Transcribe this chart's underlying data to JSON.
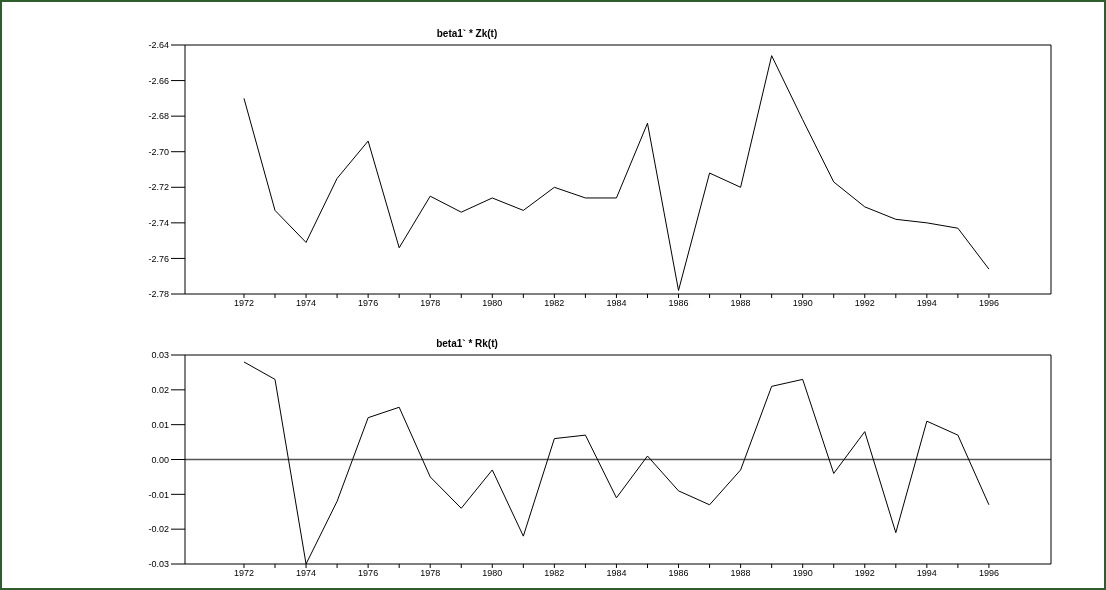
{
  "chart_data": [
    {
      "type": "line",
      "title": "beta1` * Zk(t)",
      "x": [
        1972,
        1973,
        1974,
        1975,
        1976,
        1977,
        1978,
        1979,
        1980,
        1981,
        1982,
        1983,
        1984,
        1985,
        1986,
        1987,
        1988,
        1989,
        1990,
        1991,
        1992,
        1993,
        1994,
        1995,
        1996
      ],
      "values": [
        -2.67,
        -2.733,
        -2.751,
        -2.715,
        -2.694,
        -2.754,
        -2.725,
        -2.734,
        -2.726,
        -2.733,
        -2.72,
        -2.726,
        -2.726,
        -2.684,
        -2.778,
        -2.712,
        -2.72,
        -2.646,
        -2.682,
        -2.717,
        -2.731,
        -2.738,
        -2.74,
        -2.743,
        -2.766
      ],
      "color": "#000000",
      "marker": "none",
      "xlim": [
        1970.1,
        1998
      ],
      "xticks": [
        1972,
        {
          "value": 1973,
          "label": null
        },
        1974,
        {
          "value": 1975,
          "label": null
        },
        1976,
        {
          "value": 1977,
          "label": null
        },
        1978,
        {
          "value": 1979,
          "label": null
        },
        1980,
        {
          "value": 1981,
          "label": null
        },
        1982,
        {
          "value": 1983,
          "label": null
        },
        1984,
        {
          "value": 1985,
          "label": null
        },
        1986,
        {
          "value": 1987,
          "label": null
        },
        1988,
        {
          "value": 1989,
          "label": null
        },
        1990,
        {
          "value": 1991,
          "label": null
        },
        1992,
        {
          "value": 1993,
          "label": null
        },
        1994,
        {
          "value": 1995,
          "label": null
        },
        1996
      ],
      "ylim": [
        -2.78,
        -2.64
      ],
      "yticks": [
        -2.78,
        -2.76,
        -2.74,
        -2.72,
        {
          "value": -2.7,
          "label": "-2.70"
        },
        -2.68,
        -2.66,
        -2.64
      ]
    },
    {
      "type": "line",
      "title": "beta1` * Rk(t)",
      "x": [
        1972,
        1973,
        1974,
        1975,
        1976,
        1977,
        1978,
        1979,
        1980,
        1981,
        1982,
        1983,
        1984,
        1985,
        1986,
        1987,
        1988,
        1989,
        1990,
        1991,
        1992,
        1993,
        1994,
        1995,
        1996
      ],
      "values": [
        0.028,
        0.023,
        -0.03,
        -0.012,
        0.012,
        0.015,
        -0.005,
        -0.014,
        -0.003,
        -0.022,
        0.006,
        0.007,
        -0.011,
        0.001,
        -0.009,
        -0.013,
        -0.003,
        0.021,
        0.023,
        -0.004,
        0.008,
        -0.021,
        0.011,
        0.007,
        -0.013
      ],
      "color": "#000000",
      "marker": "none",
      "xlim": [
        1970.1,
        1998
      ],
      "xticks": [
        1972,
        {
          "value": 1973,
          "label": null
        },
        1974,
        {
          "value": 1975,
          "label": null
        },
        1976,
        {
          "value": 1977,
          "label": null
        },
        1978,
        {
          "value": 1979,
          "label": null
        },
        1980,
        {
          "value": 1981,
          "label": null
        },
        1982,
        {
          "value": 1983,
          "label": null
        },
        1984,
        {
          "value": 1985,
          "label": null
        },
        1986,
        {
          "value": 1987,
          "label": null
        },
        1988,
        {
          "value": 1989,
          "label": null
        },
        1990,
        {
          "value": 1991,
          "label": null
        },
        1992,
        {
          "value": 1993,
          "label": null
        },
        1994,
        {
          "value": 1995,
          "label": null
        },
        1996
      ],
      "ylim": [
        -0.03,
        0.03
      ],
      "yticks": [
        -0.03,
        -0.02,
        -0.01,
        {
          "value": 0,
          "label": "0.00"
        },
        0.01,
        0.02,
        0.03
      ],
      "ref_lines": [
        {
          "axis": "y",
          "value": 0,
          "color": "#555555"
        }
      ]
    }
  ]
}
